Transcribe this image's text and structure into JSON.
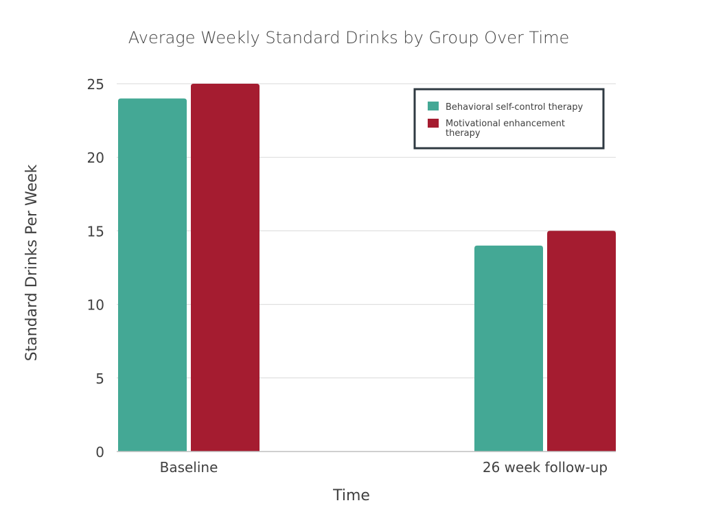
{
  "chart_data": {
    "type": "bar",
    "title": "Average Weekly Standard Drinks by Group Over Time",
    "xlabel": "Time",
    "ylabel": "Standard Drinks Per Week",
    "categories": [
      "Baseline",
      "26 week follow-up"
    ],
    "series": [
      {
        "name": "Behavioral self-control therapy",
        "values": [
          24,
          14
        ],
        "color": "#44a895"
      },
      {
        "name": "Motivational enhancement therapy",
        "values": [
          25,
          15
        ],
        "color": "#a51c30"
      }
    ],
    "ylim": [
      0,
      25
    ],
    "yticks": [
      0,
      5,
      10,
      15,
      20,
      25
    ],
    "grid": true,
    "legend_position": "top-right",
    "legend_lines": [
      [
        "Behavioral self-control therapy"
      ],
      [
        "Motivational enhancement",
        "therapy"
      ]
    ]
  }
}
